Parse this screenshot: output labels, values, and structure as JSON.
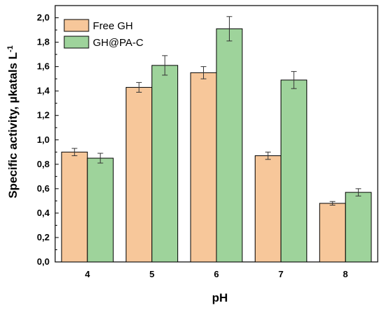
{
  "chart_data": {
    "type": "bar",
    "categories": [
      "4",
      "5",
      "6",
      "7",
      "8"
    ],
    "series": [
      {
        "name": "Free GH",
        "values": [
          0.9,
          1.43,
          1.55,
          0.87,
          0.48
        ],
        "errors": [
          0.03,
          0.04,
          0.05,
          0.03,
          0.015
        ],
        "color": "#F7C79A"
      },
      {
        "name": "GH@PA-C",
        "values": [
          0.85,
          1.61,
          1.91,
          1.49,
          0.57
        ],
        "errors": [
          0.04,
          0.08,
          0.1,
          0.07,
          0.03
        ],
        "color": "#9ED39B"
      }
    ],
    "title": "",
    "xlabel": "pH",
    "ylabel": "Specific activity, µkatals L",
    "ylabel_superscript": "-1",
    "ylim": [
      0,
      2.1
    ],
    "yticks": [
      "0,0",
      "0,2",
      "0,4",
      "0,6",
      "0,8",
      "1,0",
      "1,2",
      "1,4",
      "1,6",
      "1,8",
      "2,0"
    ],
    "grid": false,
    "legend_position": "top-left"
  }
}
